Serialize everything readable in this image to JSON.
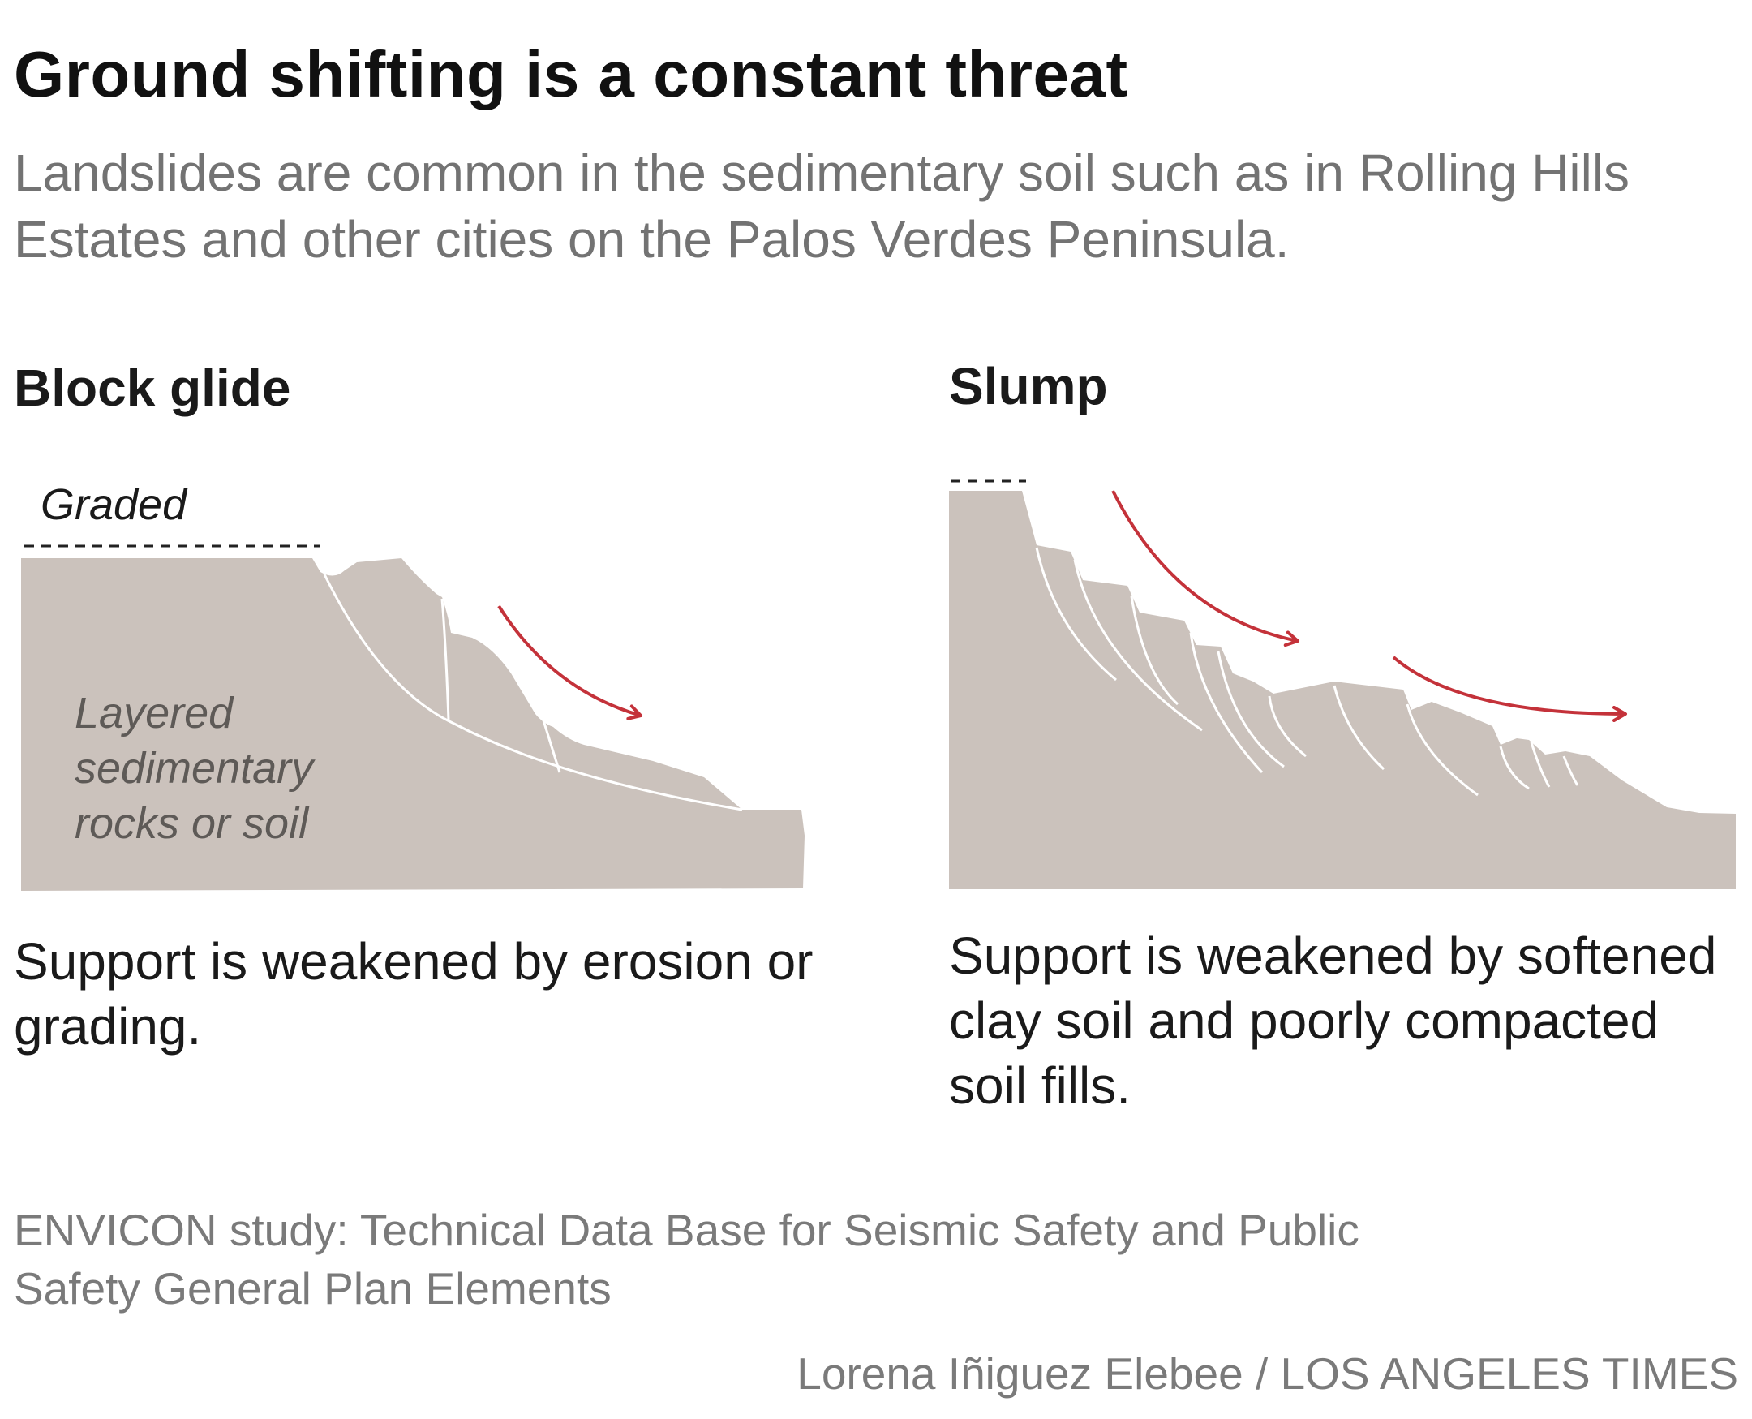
{
  "title": "Ground shifting is a constant threat",
  "subtitle": "Landslides are common in the sedimentary soil such as in Rolling Hills Estates and other cities on the Palos Verdes Peninsula.",
  "panels": {
    "block_glide": {
      "heading": "Block glide",
      "graded_label": "Graded",
      "rock_label_lines": [
        "Layered",
        "sedimentary",
        "rocks or soil"
      ],
      "caption": "Support is weakened by erosion or grading."
    },
    "slump": {
      "heading": "Slump",
      "caption": "Support is weakened by softened clay soil and poorly compacted soil fills."
    }
  },
  "source": "ENVICON study: Technical Data Base for Seismic Safety and Public Safety General Plan Elements",
  "credit": "Lorena Iñiguez Elebee / LOS ANGELES TIMES",
  "colors": {
    "terrain": "#cbc2bc",
    "arrow": "#c4323a",
    "crack": "#ffffff",
    "title": "#111111",
    "muted_text": "#777777"
  }
}
